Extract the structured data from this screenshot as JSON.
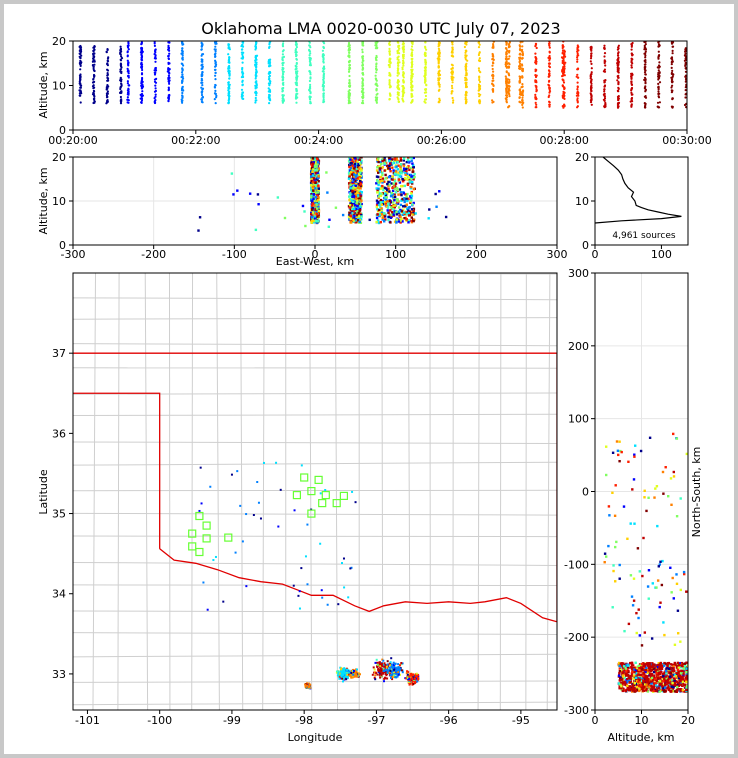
{
  "figure": {
    "title": "Oklahoma LMA 0020-0030 UTC July 07, 2023",
    "source_count_label": "4,961 sources"
  },
  "chart_data": [
    {
      "type": "scatter",
      "panel": "altitude-time",
      "ylabel": "Altitude, km",
      "xlim": [
        "00:20:00",
        "00:30:00"
      ],
      "ylim": [
        0,
        20
      ],
      "xticks": [
        "00:20:00",
        "00:22:00",
        "00:24:00",
        "00:26:00",
        "00:28:00",
        "00:30:00"
      ],
      "yticks": [
        0,
        10,
        20
      ],
      "color_by": "time",
      "colormap": [
        "#00008b",
        "#0000ff",
        "#0080ff",
        "#00e0ff",
        "#40ffc0",
        "#80ff60",
        "#e0ff20",
        "#ffd000",
        "#ff8000",
        "#ff2000",
        "#c00000",
        "#800000"
      ],
      "bursts": [
        {
          "t": 0.2,
          "zmin": 6,
          "zmax": 19
        },
        {
          "t": 1.2,
          "zmin": 6,
          "zmax": 20
        },
        {
          "t": 2.4,
          "zmin": 6,
          "zmax": 20
        },
        {
          "t": 3.5,
          "zmin": 6,
          "zmax": 20
        },
        {
          "t": 4.8,
          "zmin": 6,
          "zmax": 20
        },
        {
          "t": 5.6,
          "zmin": 6,
          "zmax": 20
        },
        {
          "t": 6.7,
          "zmin": 6,
          "zmax": 20
        },
        {
          "t": 7.4,
          "zmin": 5,
          "zmax": 20
        },
        {
          "t": 8.3,
          "zmin": 5,
          "zmax": 19
        },
        {
          "t": 9.4,
          "zmin": 5,
          "zmax": 20
        }
      ]
    },
    {
      "type": "scatter",
      "panel": "altitude-east-west",
      "xlabel": "East-West, km",
      "ylabel": "Altitude, km",
      "xlim": [
        -300,
        300
      ],
      "ylim": [
        0,
        20
      ],
      "xticks": [
        -300,
        -200,
        -100,
        0,
        100,
        200,
        300
      ],
      "yticks": [
        0,
        10,
        20
      ],
      "grid": true,
      "clusters": [
        {
          "x": 0,
          "width": 6,
          "zmin": 5,
          "zmax": 20
        },
        {
          "x": 50,
          "width": 10,
          "zmin": 5,
          "zmax": 20
        },
        {
          "x": 100,
          "width": 30,
          "zmin": 5,
          "zmax": 20
        }
      ]
    },
    {
      "type": "line",
      "panel": "altitude-histogram",
      "xlim": [
        0,
        140
      ],
      "ylim": [
        0,
        20
      ],
      "xticks": [
        0,
        100
      ],
      "yticks": [
        0,
        10,
        20
      ],
      "profile": [
        {
          "z": 5.0,
          "count": 0
        },
        {
          "z": 5.5,
          "count": 40
        },
        {
          "z": 6.0,
          "count": 100
        },
        {
          "z": 6.5,
          "count": 130
        },
        {
          "z": 7.0,
          "count": 110
        },
        {
          "z": 7.5,
          "count": 95
        },
        {
          "z": 8.0,
          "count": 80
        },
        {
          "z": 8.5,
          "count": 70
        },
        {
          "z": 9.0,
          "count": 62
        },
        {
          "z": 10.0,
          "count": 60
        },
        {
          "z": 11.0,
          "count": 55
        },
        {
          "z": 12.0,
          "count": 58
        },
        {
          "z": 13.0,
          "count": 50
        },
        {
          "z": 14.0,
          "count": 45
        },
        {
          "z": 15.0,
          "count": 42
        },
        {
          "z": 16.0,
          "count": 40
        },
        {
          "z": 17.0,
          "count": 35
        },
        {
          "z": 18.0,
          "count": 28
        },
        {
          "z": 19.0,
          "count": 20
        },
        {
          "z": 20.0,
          "count": 12
        }
      ]
    },
    {
      "type": "scatter",
      "panel": "plan-view-map",
      "xlabel": "Longitude",
      "ylabel": "Latitude",
      "xlim": [
        -101.2,
        -94.5
      ],
      "ylim": [
        32.55,
        38.0
      ],
      "xticks": [
        -101,
        -100,
        -99,
        -98,
        -97,
        -96,
        -95
      ],
      "yticks": [
        33,
        34,
        35,
        36,
        37
      ],
      "stations": [
        {
          "lon": -98.0,
          "lat": 35.45
        },
        {
          "lon": -97.8,
          "lat": 35.42
        },
        {
          "lon": -97.9,
          "lat": 35.28
        },
        {
          "lon": -98.1,
          "lat": 35.23
        },
        {
          "lon": -97.7,
          "lat": 35.23
        },
        {
          "lon": -97.55,
          "lat": 35.13
        },
        {
          "lon": -97.45,
          "lat": 35.22
        },
        {
          "lon": -97.75,
          "lat": 35.13
        },
        {
          "lon": -97.9,
          "lat": 35.0
        },
        {
          "lon": -99.45,
          "lat": 34.97
        },
        {
          "lon": -99.35,
          "lat": 34.85
        },
        {
          "lon": -99.55,
          "lat": 34.75
        },
        {
          "lon": -99.35,
          "lat": 34.69
        },
        {
          "lon": -99.55,
          "lat": 34.59
        },
        {
          "lon": -99.45,
          "lat": 34.52
        },
        {
          "lon": -99.05,
          "lat": 34.7
        }
      ],
      "source_clusters": [
        {
          "lon": -97.95,
          "lat": 32.85,
          "spread": 0.05,
          "color": "#ff8000"
        },
        {
          "lon": -97.45,
          "lat": 33.0,
          "spread": 0.15,
          "color": "#00e0ff"
        },
        {
          "lon": -97.3,
          "lat": 33.0,
          "spread": 0.1,
          "color": "#ff8000"
        },
        {
          "lon": -96.9,
          "lat": 33.05,
          "spread": 0.22,
          "color": "#c00000"
        },
        {
          "lon": -96.75,
          "lat": 33.05,
          "spread": 0.18,
          "color": "#0080ff"
        },
        {
          "lon": -96.5,
          "lat": 32.95,
          "spread": 0.15,
          "color": "#ff2000"
        }
      ]
    },
    {
      "type": "scatter",
      "panel": "north-south-altitude",
      "xlabel": "Altitude, km",
      "ylabel": "North-South, km",
      "xlim": [
        0,
        20
      ],
      "ylim": [
        -300,
        300
      ],
      "xticks": [
        0,
        10,
        20
      ],
      "yticks": [
        -300,
        -200,
        -100,
        0,
        100,
        200,
        300
      ],
      "grid": true,
      "clusters": [
        {
          "y": -255,
          "height": 40,
          "zmin": 5,
          "zmax": 20
        },
        {
          "y": -20,
          "height": 80,
          "zmin": 2,
          "zmax": 20
        }
      ]
    }
  ]
}
